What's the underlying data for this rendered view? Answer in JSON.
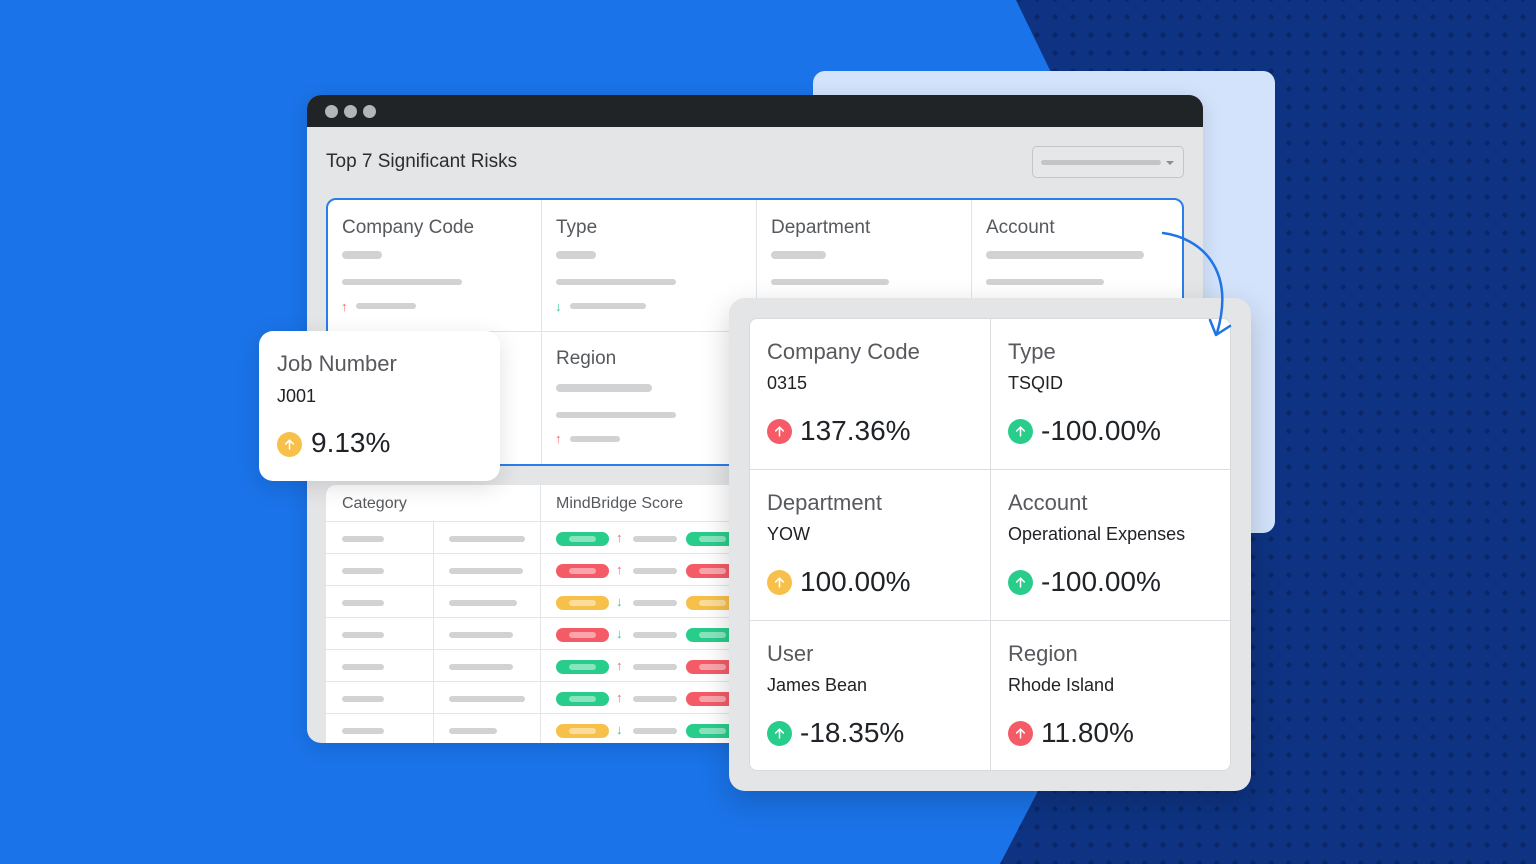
{
  "colors": {
    "background_blue": "#1a73e8",
    "background_navy": "#0d3382",
    "accent_blue": "#2b7de9",
    "risk_red": "#f45b67",
    "risk_green": "#28cd8b",
    "risk_yellow": "#f7c04a"
  },
  "window": {
    "title": "Top 7 Significant Risks",
    "dropdown": {
      "value": "",
      "icon": "chevron-down-icon"
    },
    "grid": {
      "cells": [
        {
          "label": "Company Code",
          "trend": "up"
        },
        {
          "label": "Type",
          "trend": "down"
        },
        {
          "label": "Department"
        },
        {
          "label": "Account"
        },
        {
          "label": "Region",
          "trend": "up"
        }
      ]
    },
    "table": {
      "headers": [
        "Category",
        "MindBridge Score"
      ],
      "rows": [
        {
          "score1": "green",
          "trend": "up",
          "score2": "green"
        },
        {
          "score1": "red",
          "trend": "up",
          "score2": "red"
        },
        {
          "score1": "yellow",
          "trend": "down",
          "score2": "yellow"
        },
        {
          "score1": "red",
          "trend": "down",
          "score2": "green"
        },
        {
          "score1": "green",
          "trend": "up",
          "score2": "red"
        },
        {
          "score1": "green",
          "trend": "up",
          "score2": "red"
        },
        {
          "score1": "yellow",
          "trend": "down",
          "score2": "green"
        }
      ]
    }
  },
  "job_card": {
    "label": "Job Number",
    "value": "J001",
    "percent": "9.13%",
    "indicator": "yellow"
  },
  "detail_card": {
    "cells": [
      {
        "label": "Company Code",
        "value": "0315",
        "percent": "137.36%",
        "indicator": "red"
      },
      {
        "label": "Type",
        "value": "TSQID",
        "percent": "-100.00%",
        "indicator": "green"
      },
      {
        "label": "Department",
        "value": "YOW",
        "percent": "100.00%",
        "indicator": "yellow"
      },
      {
        "label": "Account",
        "value": "Operational Expenses",
        "percent": "-100.00%",
        "indicator": "green"
      },
      {
        "label": "User",
        "value": "James Bean",
        "percent": "-18.35%",
        "indicator": "green"
      },
      {
        "label": "Region",
        "value": "Rhode Island",
        "percent": "11.80%",
        "indicator": "red"
      }
    ]
  }
}
